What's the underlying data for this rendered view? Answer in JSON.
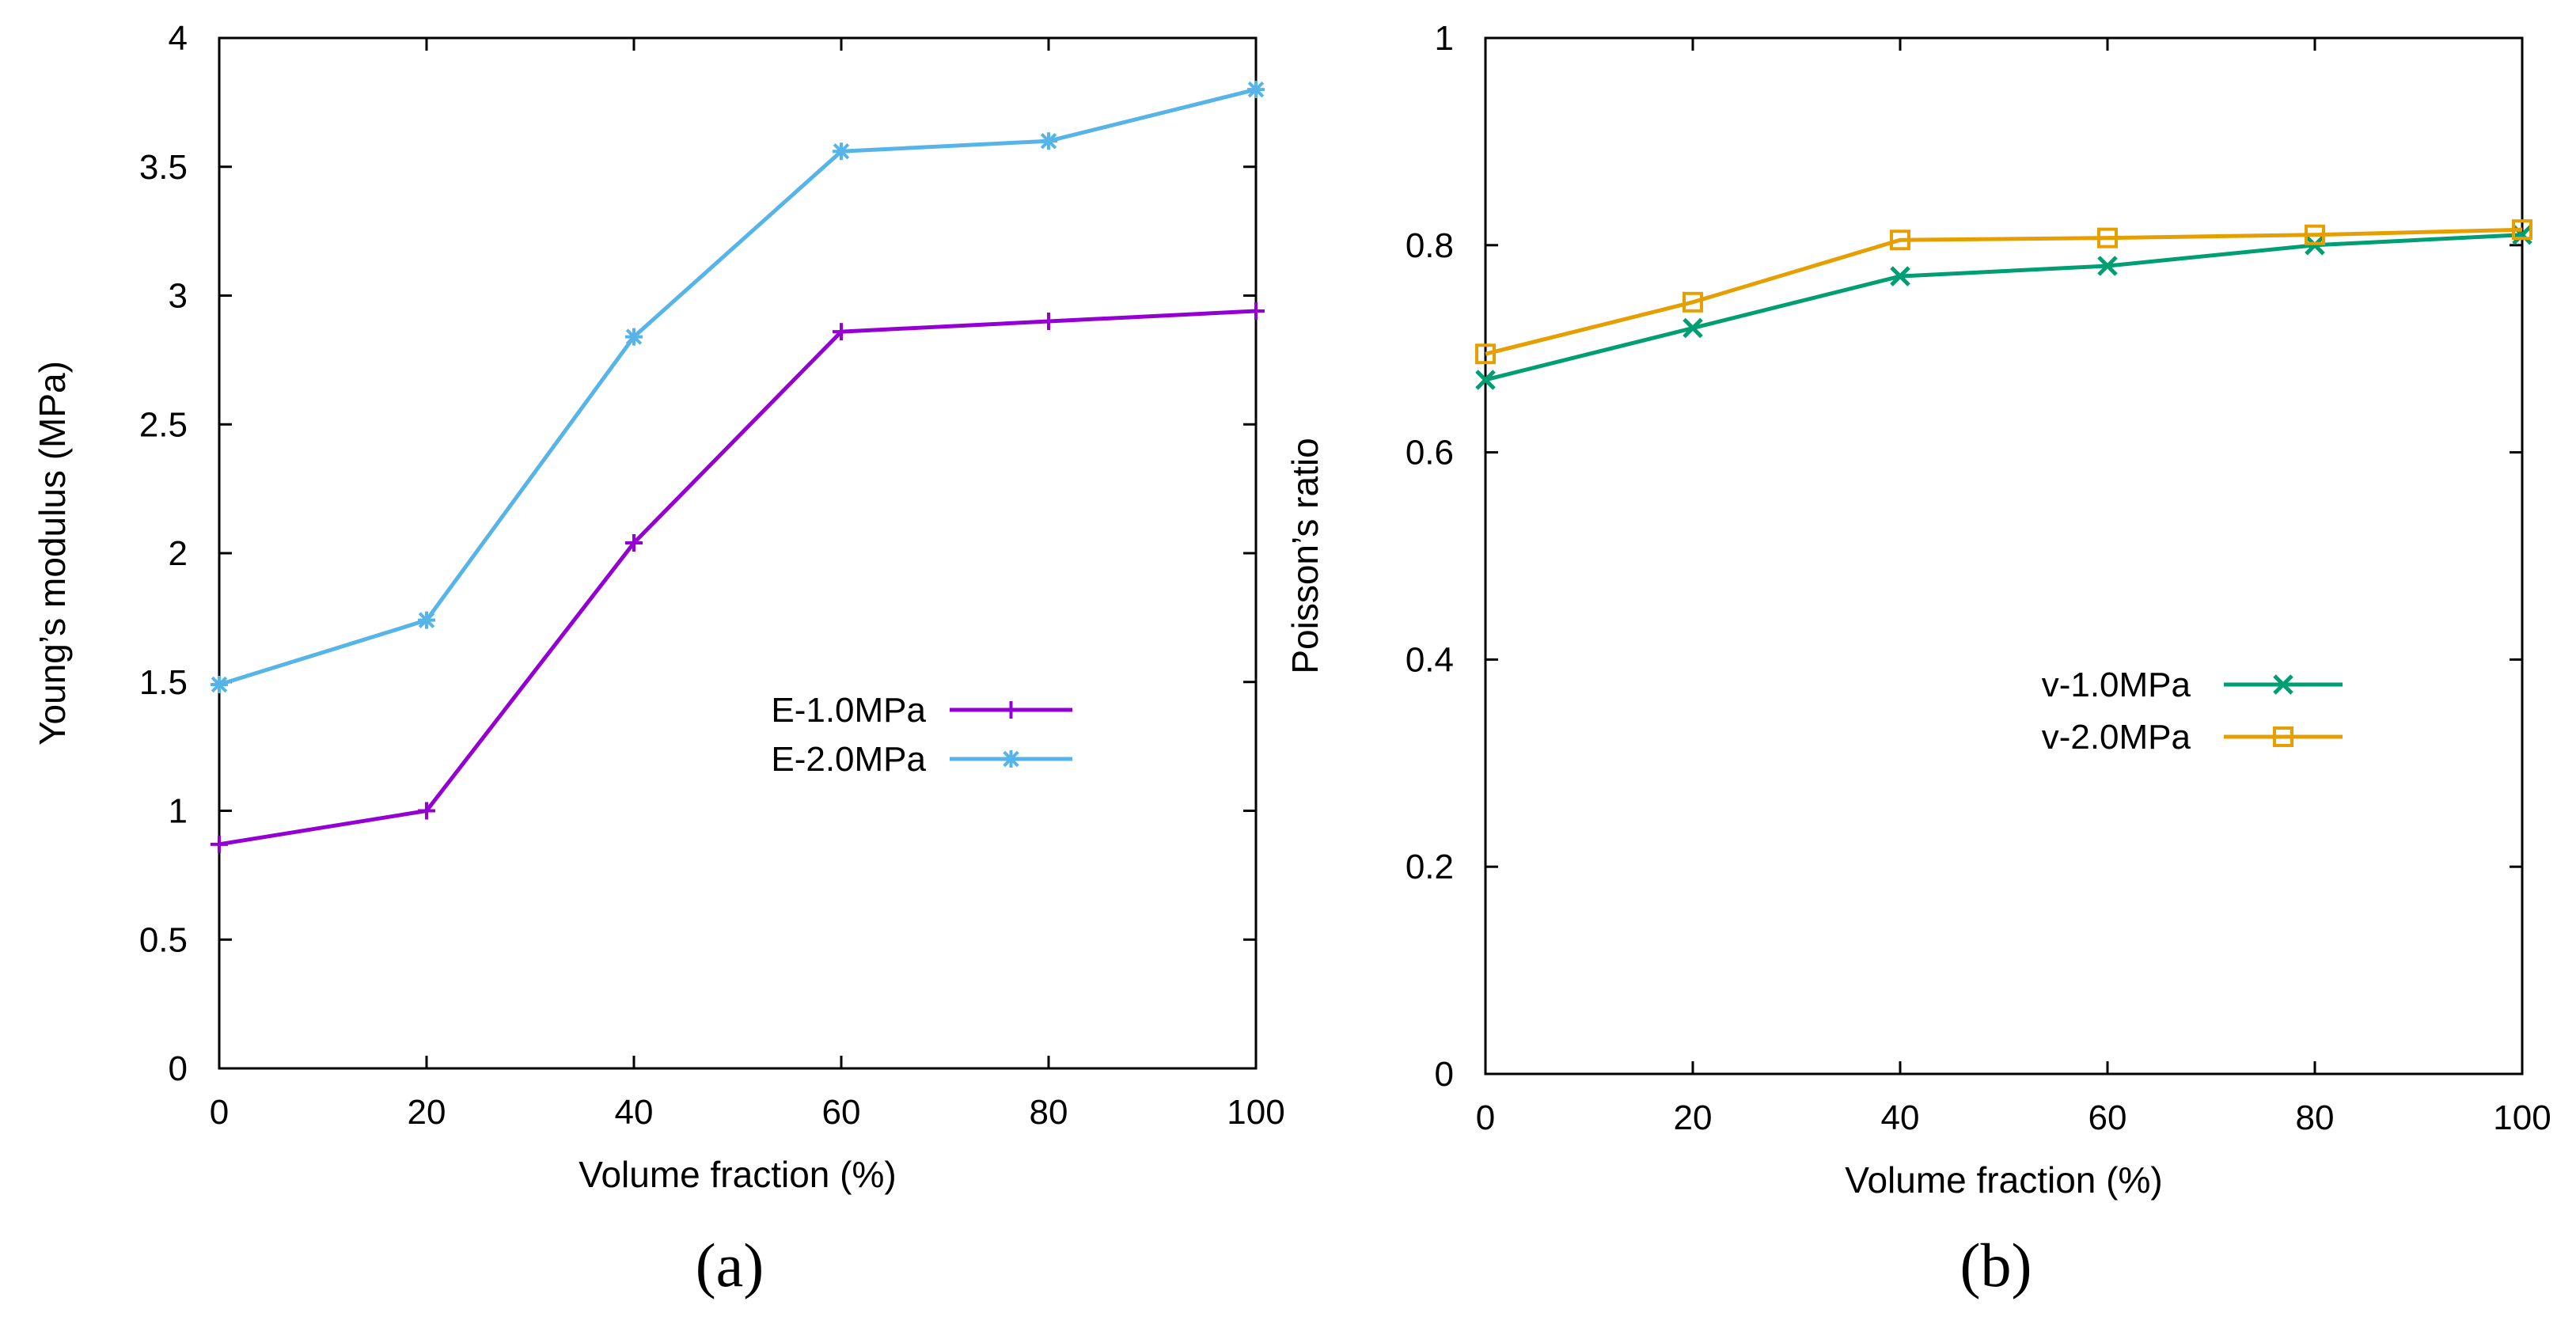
{
  "chart_data": [
    {
      "type": "line",
      "panel_label": "(a)",
      "xlabel": "Volume fraction (%)",
      "ylabel": "Young’s modulus (MPa)",
      "xlim": [
        0,
        100
      ],
      "ylim": [
        0,
        4
      ],
      "xticks": [
        0,
        20,
        40,
        60,
        80,
        100
      ],
      "yticks": [
        0,
        0.5,
        1,
        1.5,
        2,
        2.5,
        3,
        3.5,
        4
      ],
      "ytick_labels": [
        "0",
        "0.5",
        "1",
        "1.5",
        "2",
        "2.5",
        "3",
        "3.5",
        "4"
      ],
      "legend_position": "center-right",
      "x": [
        0,
        20,
        40,
        60,
        80,
        100
      ],
      "series": [
        {
          "name": "E-1.0MPa",
          "color": "#9400d3",
          "marker": "plus",
          "values": [
            0.87,
            1.0,
            2.04,
            2.86,
            2.9,
            2.94
          ]
        },
        {
          "name": "E-2.0MPa",
          "color": "#56b4e9",
          "marker": "asterisk",
          "values": [
            1.49,
            1.74,
            2.84,
            3.56,
            3.6,
            3.8
          ]
        }
      ]
    },
    {
      "type": "line",
      "panel_label": "(b)",
      "xlabel": "Volume fraction (%)",
      "ylabel": "Poisson’s ratio",
      "xlim": [
        0,
        100
      ],
      "ylim": [
        0,
        1
      ],
      "xticks": [
        0,
        20,
        40,
        60,
        80,
        100
      ],
      "yticks": [
        0,
        0.2,
        0.4,
        0.6,
        0.8,
        1
      ],
      "ytick_labels": [
        "0",
        "0.2",
        "0.4",
        "0.6",
        "0.8",
        "1"
      ],
      "legend_position": "center-right",
      "x": [
        0,
        20,
        40,
        60,
        80,
        100
      ],
      "series": [
        {
          "name": "v-1.0MPa",
          "color": "#009e73",
          "marker": "cross",
          "values": [
            0.67,
            0.72,
            0.77,
            0.78,
            0.8,
            0.81
          ]
        },
        {
          "name": "v-2.0MPa",
          "color": "#e69f00",
          "marker": "square",
          "values": [
            0.695,
            0.745,
            0.805,
            0.807,
            0.81,
            0.815
          ]
        }
      ]
    }
  ]
}
